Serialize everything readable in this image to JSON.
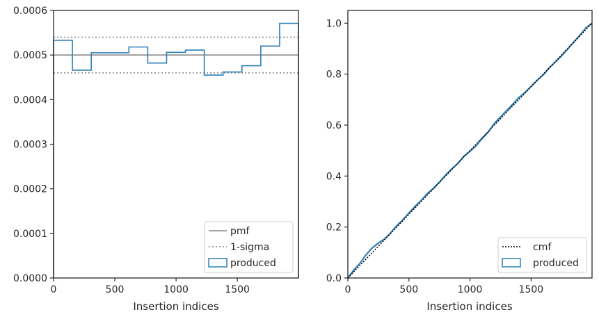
{
  "chart_data": [
    {
      "type": "line",
      "xlabel": "Insertion indices",
      "ylabel": "",
      "xlim": [
        0,
        1999
      ],
      "ylim": [
        0,
        0.0006
      ],
      "xticks": [
        0,
        500,
        1000,
        1500
      ],
      "xtick_labels": [
        "0",
        "500",
        "1000",
        "1500"
      ],
      "yticks": [
        0,
        0.0001,
        0.0002,
        0.0003,
        0.0004,
        0.0005,
        0.0006
      ],
      "ytick_labels": [
        "0.0000",
        "0.0001",
        "0.0002",
        "0.0003",
        "0.0004",
        "0.0005",
        "0.0006"
      ],
      "grid": false,
      "legend_position": "lower-right",
      "series": [
        {
          "name": "pmf",
          "kind": "hline",
          "y": 0.0005,
          "color": "#808080",
          "style": "solid"
        },
        {
          "name": "1-sigma",
          "kind": "hlines",
          "y": [
            0.00054,
            0.00046
          ],
          "color": "#808080",
          "style": "dotted"
        },
        {
          "name": "produced",
          "kind": "step",
          "color": "#2d7fb8",
          "bin_edges": [
            0,
            153.8,
            307.5,
            461.3,
            615.1,
            768.8,
            922.6,
            1076.4,
            1230.2,
            1383.9,
            1537.7,
            1691.5,
            1845.2,
            1999
          ],
          "values": [
            0.000533,
            0.000466,
            0.000505,
            0.000505,
            0.000518,
            0.000482,
            0.000506,
            0.000511,
            0.000455,
            0.000462,
            0.000476,
            0.00052,
            0.000571
          ]
        }
      ]
    },
    {
      "type": "line",
      "xlabel": "Insertion indices",
      "ylabel": "",
      "xlim": [
        0,
        1999
      ],
      "ylim": [
        0,
        1.05
      ],
      "xticks": [
        0,
        500,
        1000,
        1500
      ],
      "xtick_labels": [
        "0",
        "500",
        "1000",
        "1500"
      ],
      "yticks": [
        0,
        0.2,
        0.4,
        0.6,
        0.8,
        1.0
      ],
      "ytick_labels": [
        "0.0",
        "0.2",
        "0.4",
        "0.6",
        "0.8",
        "1.0"
      ],
      "grid": false,
      "legend_position": "lower-right",
      "series": [
        {
          "name": "cmf",
          "kind": "line",
          "color": "#000000",
          "style": "dotted",
          "x": [
            0,
            1999
          ],
          "y": [
            0,
            1.0
          ]
        },
        {
          "name": "produced",
          "kind": "step",
          "color": "#2d7fb8",
          "x": [
            0,
            50,
            100,
            150,
            200,
            250,
            300,
            350,
            400,
            450,
            500,
            550,
            600,
            650,
            700,
            750,
            800,
            850,
            900,
            950,
            1000,
            1050,
            1100,
            1150,
            1200,
            1250,
            1300,
            1350,
            1400,
            1450,
            1500,
            1550,
            1600,
            1650,
            1700,
            1750,
            1800,
            1850,
            1900,
            1950,
            1999
          ],
          "y": [
            0,
            0.032,
            0.058,
            0.092,
            0.118,
            0.137,
            0.153,
            0.177,
            0.205,
            0.228,
            0.255,
            0.281,
            0.304,
            0.331,
            0.352,
            0.376,
            0.404,
            0.428,
            0.449,
            0.478,
            0.497,
            0.519,
            0.548,
            0.573,
            0.607,
            0.632,
            0.657,
            0.682,
            0.708,
            0.728,
            0.752,
            0.776,
            0.797,
            0.825,
            0.848,
            0.872,
            0.899,
            0.926,
            0.953,
            0.982,
            1.0
          ]
        }
      ]
    }
  ]
}
